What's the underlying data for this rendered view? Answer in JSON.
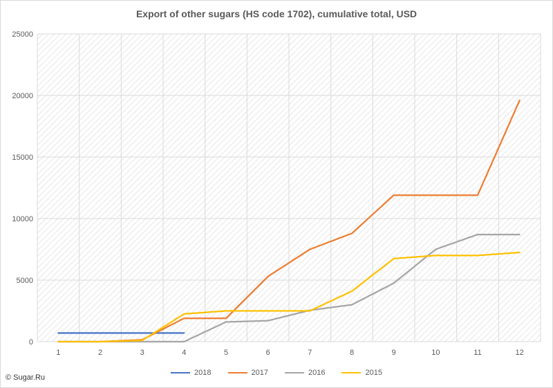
{
  "chart_data": {
    "type": "line",
    "title": "Export of other sugars (HS code 1702), cumulative total, USD",
    "xlabel": "",
    "ylabel": "",
    "x": [
      1,
      2,
      3,
      4,
      5,
      6,
      7,
      8,
      9,
      10,
      11,
      12
    ],
    "ylim": [
      0,
      25000
    ],
    "yticks": [
      0,
      5000,
      10000,
      15000,
      20000,
      25000
    ],
    "grid": true,
    "legend_position": "bottom",
    "series": [
      {
        "name": "2018",
        "color": "#4472c4",
        "values": [
          700,
          700,
          700,
          700,
          null,
          null,
          null,
          null,
          null,
          null,
          null,
          null
        ]
      },
      {
        "name": "2017",
        "color": "#ed7d31",
        "values": [
          0,
          0,
          150,
          1900,
          1900,
          5300,
          7500,
          8800,
          11900,
          11900,
          11900,
          19600
        ]
      },
      {
        "name": "2016",
        "color": "#a5a5a5",
        "values": [
          0,
          0,
          0,
          0,
          1600,
          1700,
          2550,
          3000,
          4750,
          7500,
          8700,
          8700
        ]
      },
      {
        "name": "2015",
        "color": "#ffc000",
        "values": [
          0,
          0,
          100,
          2250,
          2500,
          2500,
          2500,
          4100,
          6750,
          7000,
          7000,
          7250
        ]
      }
    ]
  },
  "footer": {
    "credit": "© Sugar.Ru"
  }
}
